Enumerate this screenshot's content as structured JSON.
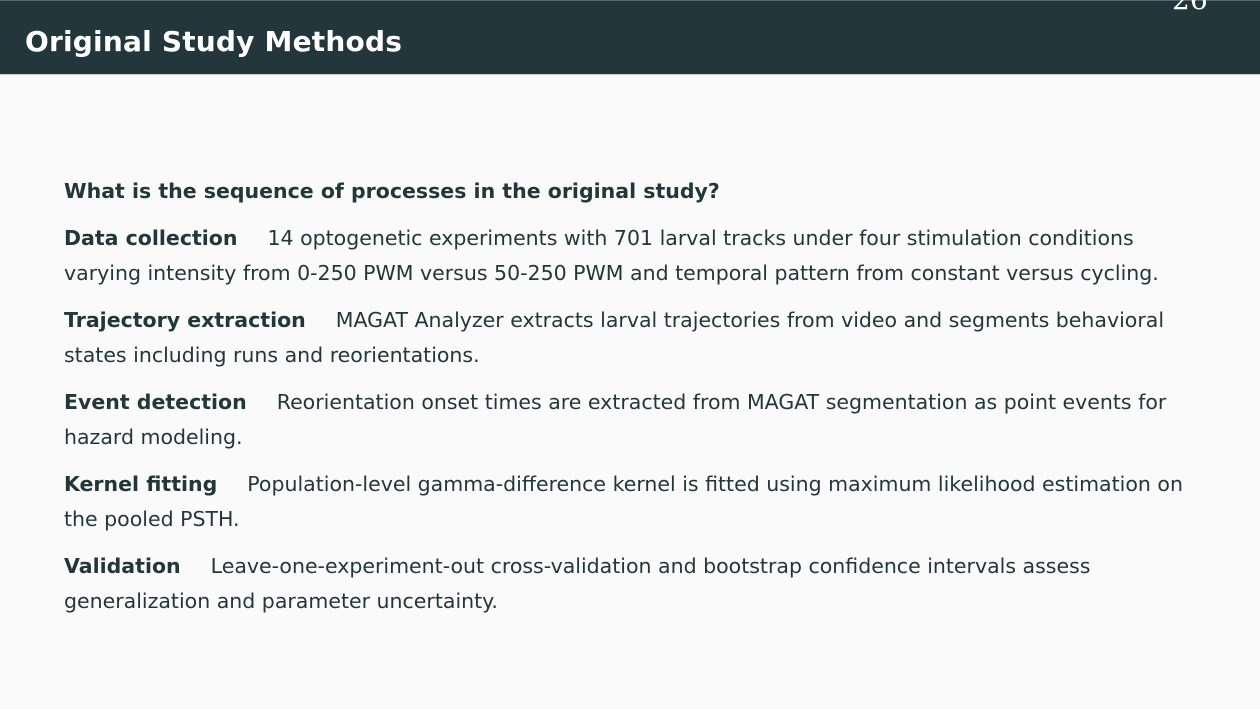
{
  "slide": {
    "title": "Original Study Methods",
    "page_number": "26",
    "colors": {
      "header_bg": "#23363b",
      "text": "#23373b",
      "background": "#fafafa"
    }
  },
  "content": {
    "question": "What is the sequence of processes in the original study?",
    "items": [
      {
        "term": "Data collection",
        "text": "14 optogenetic experiments with 701 larval tracks under four stimulation conditions varying intensity from 0-250 PWM versus 50-250 PWM and temporal pattern from constant versus cycling."
      },
      {
        "term": "Trajectory extraction",
        "text": "MAGAT Analyzer extracts larval trajectories from video and segments behavioral states including runs and reorientations."
      },
      {
        "term": "Event detection",
        "text": "Reorientation onset times are extracted from MAGAT segmentation as point events for hazard modeling."
      },
      {
        "term": "Kernel fitting",
        "text": "Population-level gamma-difference kernel is fitted using maximum likelihood estimation on the pooled PSTH."
      },
      {
        "term": "Validation",
        "text": "Leave-one-experiment-out cross-validation and bootstrap confidence intervals assess generalization and parameter uncertainty."
      }
    ]
  }
}
